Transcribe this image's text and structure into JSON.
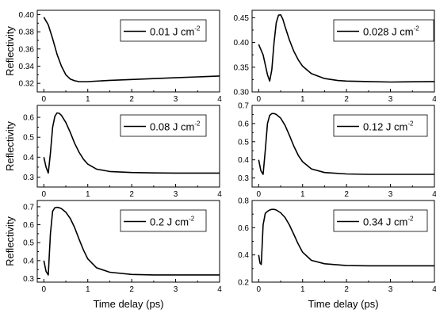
{
  "chart_data": [
    {
      "type": "line",
      "legend": {
        "value": "0.01",
        "unit": "J cm",
        "exponent": "-2",
        "placement": "top-right"
      },
      "ylabel": "Reflectivity",
      "xlabel": "",
      "xlim": [
        -0.15,
        4
      ],
      "ylim": [
        0.31,
        0.405
      ],
      "xticks": [
        0,
        1,
        2,
        3,
        4
      ],
      "yticks": [
        0.32,
        0.34,
        0.36,
        0.38,
        0.4
      ],
      "ytick_labels": [
        "0.32",
        "0.34",
        "0.36",
        "0.38",
        "0.40"
      ],
      "x": [
        0,
        0.1,
        0.2,
        0.3,
        0.4,
        0.5,
        0.6,
        0.7,
        0.8,
        1.0,
        1.5,
        2.0,
        2.5,
        3.0,
        3.5,
        4.0
      ],
      "y": [
        0.397,
        0.388,
        0.372,
        0.354,
        0.34,
        0.33,
        0.325,
        0.323,
        0.322,
        0.322,
        0.3235,
        0.3245,
        0.3255,
        0.3265,
        0.3275,
        0.3285
      ]
    },
    {
      "type": "line",
      "legend": {
        "value": "0.028",
        "unit": "J cm",
        "exponent": "-2",
        "placement": "top-right"
      },
      "ylabel": "",
      "xlabel": "",
      "xlim": [
        -0.15,
        4
      ],
      "ylim": [
        0.3,
        0.465
      ],
      "xticks": [
        0,
        1,
        2,
        3,
        4
      ],
      "yticks": [
        0.3,
        0.35,
        0.4,
        0.45
      ],
      "ytick_labels": [
        "0.30",
        "0.35",
        "0.40",
        "0.45"
      ],
      "x": [
        0,
        0.1,
        0.2,
        0.25,
        0.3,
        0.35,
        0.4,
        0.45,
        0.5,
        0.55,
        0.6,
        0.7,
        0.8,
        0.9,
        1.0,
        1.2,
        1.5,
        1.8,
        2.0,
        2.5,
        3.0,
        3.5,
        4.0
      ],
      "y": [
        0.396,
        0.375,
        0.335,
        0.322,
        0.345,
        0.4,
        0.44,
        0.455,
        0.456,
        0.447,
        0.432,
        0.405,
        0.382,
        0.365,
        0.352,
        0.337,
        0.327,
        0.323,
        0.322,
        0.321,
        0.32,
        0.3205,
        0.321
      ]
    },
    {
      "type": "line",
      "legend": {
        "value": "0.08",
        "unit": "J cm",
        "exponent": "-2",
        "placement": "top-right"
      },
      "ylabel": "Reflectivity",
      "xlabel": "",
      "xlim": [
        -0.15,
        4
      ],
      "ylim": [
        0.25,
        0.66
      ],
      "xticks": [
        0,
        1,
        2,
        3,
        4
      ],
      "yticks": [
        0.3,
        0.4,
        0.5,
        0.6
      ],
      "ytick_labels": [
        "0.3",
        "0.4",
        "0.5",
        "0.6"
      ],
      "x": [
        0,
        0.05,
        0.1,
        0.15,
        0.2,
        0.25,
        0.3,
        0.35,
        0.4,
        0.5,
        0.6,
        0.7,
        0.8,
        0.9,
        1.0,
        1.2,
        1.5,
        2.0,
        2.5,
        3.0,
        3.5,
        4.0
      ],
      "y": [
        0.4,
        0.35,
        0.32,
        0.42,
        0.55,
        0.605,
        0.622,
        0.62,
        0.61,
        0.575,
        0.525,
        0.47,
        0.425,
        0.39,
        0.365,
        0.34,
        0.328,
        0.323,
        0.321,
        0.32,
        0.32,
        0.32
      ]
    },
    {
      "type": "line",
      "legend": {
        "value": "0.12",
        "unit": "J cm",
        "exponent": "-2",
        "placement": "top-right"
      },
      "ylabel": "",
      "xlabel": "",
      "xlim": [
        -0.15,
        4
      ],
      "ylim": [
        0.25,
        0.7
      ],
      "xticks": [
        0,
        1,
        2,
        3,
        4
      ],
      "yticks": [
        0.3,
        0.4,
        0.5,
        0.6,
        0.7
      ],
      "ytick_labels": [
        "0.3",
        "0.4",
        "0.5",
        "0.6",
        "0.7"
      ],
      "x": [
        0,
        0.05,
        0.1,
        0.15,
        0.2,
        0.25,
        0.3,
        0.35,
        0.4,
        0.5,
        0.6,
        0.7,
        0.8,
        0.9,
        1.0,
        1.2,
        1.5,
        2.0,
        2.5,
        3.0,
        3.5,
        4.0
      ],
      "y": [
        0.4,
        0.34,
        0.32,
        0.45,
        0.6,
        0.645,
        0.655,
        0.655,
        0.65,
        0.63,
        0.59,
        0.535,
        0.475,
        0.425,
        0.39,
        0.35,
        0.33,
        0.322,
        0.32,
        0.32,
        0.32,
        0.32
      ]
    },
    {
      "type": "line",
      "legend": {
        "value": "0.2",
        "unit": "J cm",
        "exponent": "-2",
        "placement": "top-right"
      },
      "ylabel": "Reflectivity",
      "xlabel": "Time delay (ps)",
      "xlim": [
        -0.15,
        4
      ],
      "ylim": [
        0.28,
        0.735
      ],
      "xticks": [
        0,
        1,
        2,
        3,
        4
      ],
      "yticks": [
        0.3,
        0.4,
        0.5,
        0.6,
        0.7
      ],
      "ytick_labels": [
        "0.3",
        "0.4",
        "0.5",
        "0.6",
        "0.7"
      ],
      "x": [
        0,
        0.05,
        0.1,
        0.15,
        0.2,
        0.25,
        0.3,
        0.35,
        0.4,
        0.5,
        0.6,
        0.7,
        0.8,
        0.9,
        1.0,
        1.2,
        1.5,
        2.0,
        2.5,
        3.0,
        3.5,
        4.0
      ],
      "y": [
        0.4,
        0.34,
        0.32,
        0.55,
        0.675,
        0.695,
        0.697,
        0.695,
        0.69,
        0.67,
        0.635,
        0.585,
        0.52,
        0.46,
        0.41,
        0.36,
        0.335,
        0.323,
        0.32,
        0.32,
        0.32,
        0.32
      ]
    },
    {
      "type": "line",
      "legend": {
        "value": "0.34",
        "unit": "J cm",
        "exponent": "-2",
        "placement": "top-right"
      },
      "ylabel": "",
      "xlabel": "Time delay (ps)",
      "xlim": [
        -0.15,
        4
      ],
      "ylim": [
        0.2,
        0.8
      ],
      "xticks": [
        0,
        1,
        2,
        3,
        4
      ],
      "yticks": [
        0.2,
        0.4,
        0.6,
        0.8
      ],
      "ytick_labels": [
        "0.2",
        "0.4",
        "0.6",
        "0.8"
      ],
      "x": [
        0,
        0.03,
        0.06,
        0.1,
        0.15,
        0.2,
        0.25,
        0.3,
        0.35,
        0.4,
        0.5,
        0.6,
        0.7,
        0.8,
        0.9,
        1.0,
        1.2,
        1.5,
        2.0,
        2.5,
        3.0,
        3.5,
        4.0
      ],
      "y": [
        0.4,
        0.34,
        0.33,
        0.62,
        0.705,
        0.72,
        0.73,
        0.735,
        0.735,
        0.73,
        0.71,
        0.675,
        0.62,
        0.55,
        0.48,
        0.42,
        0.36,
        0.335,
        0.322,
        0.32,
        0.32,
        0.32,
        0.32
      ]
    }
  ]
}
